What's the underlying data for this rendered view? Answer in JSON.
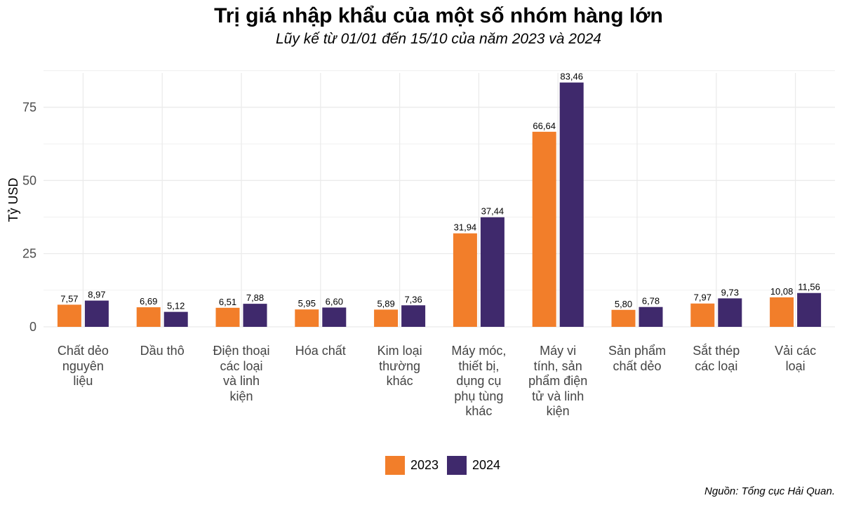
{
  "title": "Trị giá nhập khẩu của một số nhóm hàng lớn",
  "subtitle": "Lũy kế từ 01/01 đến 15/10 của năm 2023 và 2024",
  "source": "Nguồn: Tổng cục Hải Quan.",
  "colors": {
    "2023": "#f27e2a",
    "2024": "#3f296c",
    "grid": "#ebebeb",
    "axis_text": "#4d4d4d"
  },
  "chart_data": {
    "type": "bar",
    "ylabel": "Tỷ USD",
    "ylim": [
      0,
      92
    ],
    "yticks": [
      0,
      25,
      50,
      75
    ],
    "grid": true,
    "legend_position": "bottom",
    "categories": [
      "Chất dẻo nguyên liệu",
      "Dầu thô",
      "Điện thoại các loại và linh kiện",
      "Hóa chất",
      "Kim loại thường khác",
      "Máy móc, thiết bị, dụng cụ phụ tùng khác",
      "Máy vi tính, sản phẩm điện tử và linh kiện",
      "Sản phẩm chất dẻo",
      "Sắt thép các loại",
      "Vải các loại"
    ],
    "category_label_lines": [
      [
        "Chất dẻo",
        "nguyên",
        "liệu"
      ],
      [
        "Dầu thô"
      ],
      [
        "Điện thoại",
        "các loại",
        "và linh",
        "kiện"
      ],
      [
        "Hóa chất"
      ],
      [
        "Kim loại",
        "thường",
        "khác"
      ],
      [
        "Máy móc,",
        "thiết bị,",
        "dụng cụ",
        "phụ tùng",
        "khác"
      ],
      [
        "Máy vi",
        "tính, sản",
        "phẩm điện",
        "tử và linh",
        "kiện"
      ],
      [
        "Sản phẩm",
        "chất dẻo"
      ],
      [
        "Sắt thép",
        "các loại"
      ],
      [
        "Vải các",
        "loại"
      ]
    ],
    "series": [
      {
        "name": "2023",
        "values": [
          7.57,
          6.69,
          6.51,
          5.95,
          5.89,
          31.94,
          66.64,
          5.8,
          7.97,
          10.08
        ],
        "labels": [
          "7,57",
          "6,69",
          "6,51",
          "5,95",
          "5,89",
          "31,94",
          "66,64",
          "5,80",
          "7,97",
          "10,08"
        ]
      },
      {
        "name": "2024",
        "values": [
          8.97,
          5.12,
          7.88,
          6.6,
          7.36,
          37.44,
          83.46,
          6.78,
          9.73,
          11.56
        ],
        "labels": [
          "8,97",
          "5,12",
          "7,88",
          "6,60",
          "7,36",
          "37,44",
          "83,46",
          "6,78",
          "9,73",
          "11,56"
        ]
      }
    ]
  }
}
